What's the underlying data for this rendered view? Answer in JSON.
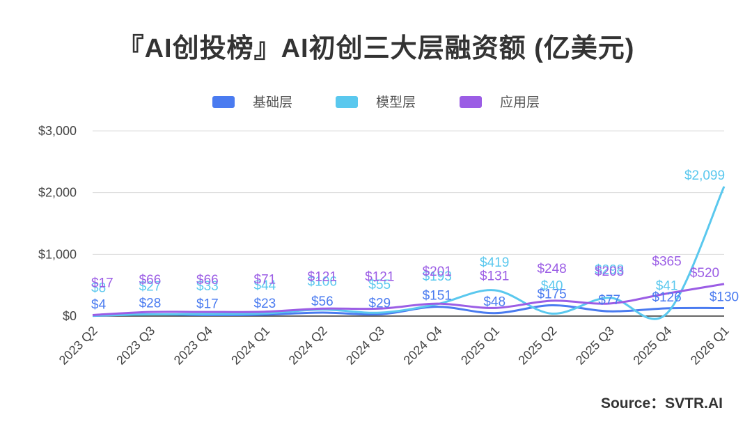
{
  "title": "『AI创投榜』AI初创三大层融资额 (亿美元)",
  "source": "Source：SVTR.AI",
  "chart_data": {
    "type": "line",
    "categories": [
      "2023 Q2",
      "2023 Q3",
      "2023 Q4",
      "2024 Q1",
      "2024 Q2",
      "2024 Q3",
      "2024 Q4",
      "2025 Q1",
      "2025 Q2",
      "2025 Q3",
      "2025 Q4",
      "2026 Q1"
    ],
    "y_ticks": [
      "$0",
      "$1,000",
      "$2,000",
      "$3,000"
    ],
    "ylim": [
      0,
      3000
    ],
    "legend_position": "top",
    "grid": true,
    "series": [
      {
        "name": "基础层",
        "color": "#4A7BF0",
        "values": [
          4,
          28,
          17,
          23,
          56,
          29,
          151,
          48,
          175,
          77,
          126,
          130
        ],
        "labels": [
          "$4",
          "$28",
          "$17",
          "$23",
          "$56",
          "$29",
          "$151",
          "$48",
          "$175",
          "$77",
          "$126",
          "$130"
        ]
      },
      {
        "name": "模型层",
        "color": "#5AC8EE",
        "values": [
          8,
          27,
          33,
          44,
          106,
          55,
          193,
          419,
          40,
          298,
          41,
          2099
        ],
        "labels": [
          "$8",
          "$27",
          "$33",
          "$44",
          "$106",
          "$55",
          "$193",
          "$419",
          "$40",
          "$298",
          "$41",
          "$2,099"
        ]
      },
      {
        "name": "应用层",
        "color": "#9B5DE5",
        "values": [
          17,
          66,
          66,
          71,
          121,
          121,
          201,
          131,
          248,
          203,
          365,
          520
        ],
        "labels": [
          "$17",
          "$66",
          "$66",
          "$71",
          "$121",
          "$121",
          "$201",
          "$131",
          "$248",
          "$203",
          "$365",
          "$520"
        ]
      }
    ]
  }
}
